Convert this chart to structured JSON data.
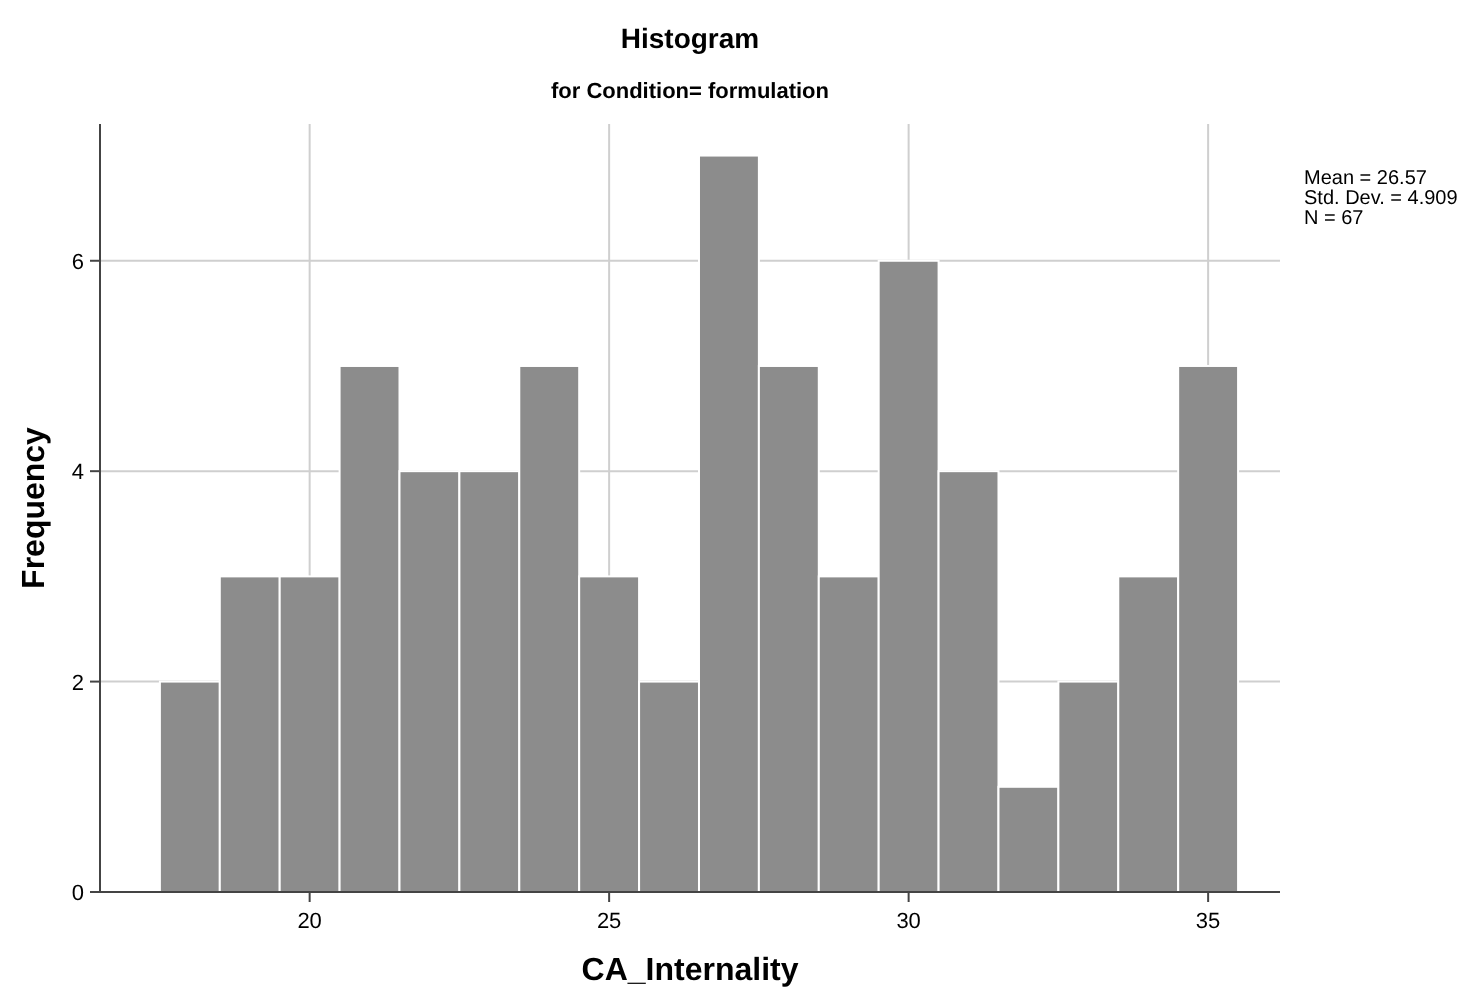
{
  "chart_data": {
    "type": "histogram",
    "title": "Histogram",
    "subtitle": "for Condition= formulation",
    "xlabel": "CA_Internality",
    "ylabel": "Frequency",
    "bins": [
      17.5,
      18.5,
      19.5,
      20.5,
      21.5,
      22.5,
      23.5,
      24.5,
      25.5,
      26.5,
      27.5,
      28.5,
      29.5,
      30.5,
      31.5,
      32.5,
      33.5,
      34.5,
      35.5
    ],
    "values": [
      2,
      3,
      3,
      5,
      4,
      4,
      5,
      3,
      2,
      7,
      5,
      3,
      6,
      4,
      1,
      2,
      3,
      5
    ],
    "color": "#8c8c8c",
    "xlim": [
      16.5,
      36.2
    ],
    "xticks": [
      20,
      25,
      30,
      35
    ],
    "ylim": [
      0,
      7.3
    ],
    "yticks": [
      0,
      2,
      4,
      6
    ],
    "grid": true,
    "annotations": [
      "Mean = 26.57",
      "Std. Dev. = 4.909",
      "N = 67"
    ]
  }
}
